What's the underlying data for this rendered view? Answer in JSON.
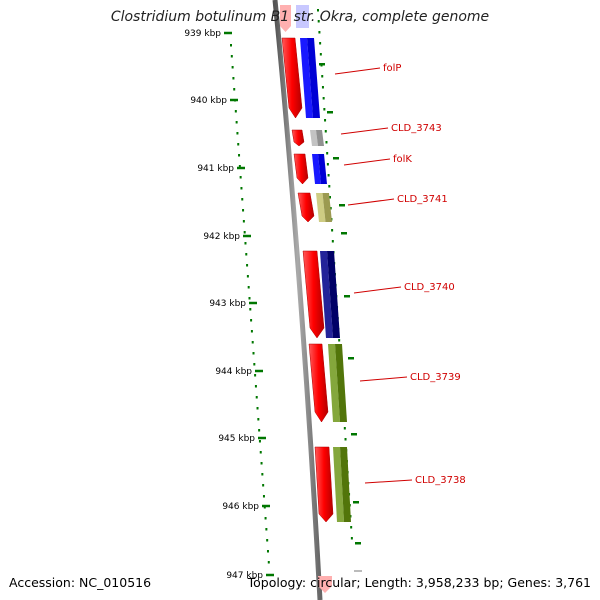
{
  "title": "Clostridium botulinum B1 str. Okra, complete genome",
  "accession": "Accession: NC_010516",
  "topology": "Topology: circular; Length: 3,958,233 bp; Genes: 3,761",
  "ticks": [
    "939 kbp",
    "940 kbp",
    "941 kbp",
    "942 kbp",
    "943 kbp",
    "944 kbp",
    "945 kbp",
    "946 kbp",
    "947 kbp"
  ],
  "genes": [
    {
      "label": "folP",
      "cog_color": "#0000ee"
    },
    {
      "label": "CLD_3743",
      "cog_color": "#aaaaaa"
    },
    {
      "label": "folK",
      "cog_color": "#0000ee"
    },
    {
      "label": "CLD_3741",
      "cog_color": "#b5b36a"
    },
    {
      "label": "CLD_3740",
      "cog_color": "#0a0a80"
    },
    {
      "label": "CLD_3739",
      "cog_color": "#6b8e23"
    },
    {
      "label": "CLD_3738",
      "cog_color": "#6b8e23"
    }
  ],
  "colors": {
    "cds": "#ff0000",
    "backbone": "#888888",
    "tick": "#007700",
    "label": "#d00000"
  }
}
